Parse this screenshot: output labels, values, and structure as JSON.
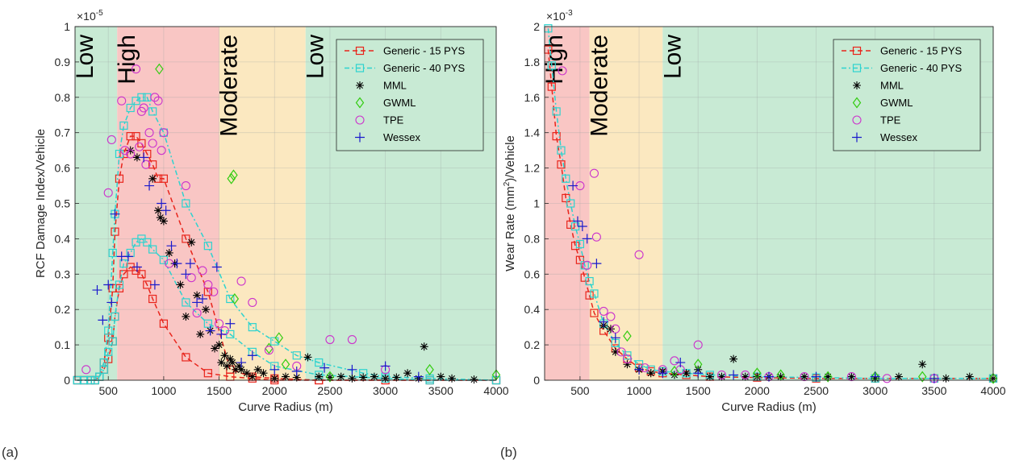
{
  "colors": {
    "low": "#c8ead4",
    "high": "#f9c6c4",
    "moderate": "#fbe8c0",
    "generic15": "#e8251c",
    "generic40": "#2dd3cf",
    "mml": "#000000",
    "gwml": "#33cc11",
    "tpe": "#cc33cc",
    "wessex": "#1a1acc"
  },
  "panel_labels": [
    "(a)",
    "(b)"
  ],
  "legend_entries": [
    "Generic - 15 PYS",
    "Generic - 40 PYS",
    "MML",
    "GWML",
    "TPE",
    "Wessex"
  ],
  "chart_data": [
    {
      "type": "scatter",
      "panel": "(a)",
      "xlabel": "Curve Radius (m)",
      "ylabel": "RCF Damage Index/Vehicle",
      "exponent_label": "×10",
      "exponent_power": "-5",
      "xlim": [
        200,
        4000
      ],
      "ylim": [
        0,
        1
      ],
      "xticks": [
        500,
        1000,
        1500,
        2000,
        2500,
        3000,
        3500,
        4000
      ],
      "yticks": [
        0,
        0.1,
        0.2,
        0.3,
        0.4,
        0.5,
        0.6,
        0.7,
        0.8,
        0.9,
        1
      ],
      "grid": true,
      "legend_position": "top-right",
      "zones": [
        {
          "label": "Low",
          "from": 200,
          "to": 580,
          "color_key": "low"
        },
        {
          "label": "High",
          "from": 580,
          "to": 1500,
          "color_key": "high"
        },
        {
          "label": "Moderate",
          "from": 1500,
          "to": 2280,
          "color_key": "moderate"
        },
        {
          "label": "Low",
          "from": 2280,
          "to": 4000,
          "color_key": "low"
        }
      ],
      "series": [
        {
          "name": "Generic - 15 PYS",
          "marker": "square",
          "color_key": "generic15",
          "line": true,
          "x": [
            220,
            280,
            340,
            380,
            420,
            460,
            500,
            540,
            560,
            600,
            640,
            700,
            750,
            800,
            850,
            900,
            1000,
            1200,
            1400,
            1600,
            1800,
            2000,
            2400,
            3000,
            3400,
            4000
          ],
          "y": [
            0.0,
            0.0,
            0.0,
            0.0,
            0.01,
            0.03,
            0.06,
            0.11,
            0.18,
            0.26,
            0.3,
            0.32,
            0.31,
            0.3,
            0.27,
            0.23,
            0.16,
            0.065,
            0.02,
            0.01,
            0.005,
            0.0,
            0.0,
            0.0,
            0.0,
            0.0
          ]
        },
        {
          "name": "Generic - 15 PYS",
          "marker": "square",
          "color_key": "generic15",
          "line": true,
          "x": [
            220,
            280,
            340,
            380,
            420,
            460,
            500,
            540,
            560,
            600,
            640,
            700,
            750,
            800,
            850,
            900,
            950,
            1000,
            1200,
            1400,
            1600,
            1800,
            2000,
            2400,
            3000,
            3400,
            4000
          ],
          "y": [
            0.0,
            0.0,
            0.0,
            0.0,
            0.01,
            0.05,
            0.12,
            0.26,
            0.42,
            0.57,
            0.64,
            0.69,
            0.69,
            0.67,
            0.64,
            0.61,
            0.57,
            0.57,
            0.4,
            0.25,
            0.03,
            0.01,
            0.005,
            0.0,
            0.0,
            0.0,
            0.0
          ]
        },
        {
          "name": "Generic - 40 PYS",
          "marker": "square",
          "color_key": "generic40",
          "line": true,
          "x": [
            220,
            280,
            340,
            380,
            420,
            460,
            500,
            540,
            560,
            600,
            640,
            700,
            750,
            800,
            850,
            900,
            1000,
            1200,
            1400,
            1600,
            1800,
            2000,
            2400,
            3000,
            3400,
            4000
          ],
          "y": [
            0.0,
            0.0,
            0.0,
            0.0,
            0.01,
            0.03,
            0.08,
            0.11,
            0.18,
            0.27,
            0.33,
            0.36,
            0.39,
            0.4,
            0.39,
            0.37,
            0.34,
            0.22,
            0.16,
            0.13,
            0.08,
            0.04,
            0.015,
            0.005,
            0.0,
            0.0
          ]
        },
        {
          "name": "Generic - 40 PYS",
          "marker": "square",
          "color_key": "generic40",
          "line": true,
          "x": [
            220,
            280,
            340,
            380,
            420,
            460,
            500,
            540,
            560,
            600,
            640,
            700,
            750,
            800,
            850,
            900,
            1000,
            1200,
            1400,
            1600,
            1800,
            2000,
            2200,
            2400,
            2800,
            3000,
            3400,
            4000
          ],
          "y": [
            0.0,
            0.0,
            0.0,
            0.0,
            0.01,
            0.05,
            0.14,
            0.36,
            0.47,
            0.64,
            0.72,
            0.77,
            0.79,
            0.8,
            0.8,
            0.76,
            0.7,
            0.5,
            0.38,
            0.23,
            0.15,
            0.11,
            0.07,
            0.05,
            0.02,
            0.01,
            0.005,
            0.0
          ]
        },
        {
          "name": "MML",
          "marker": "asterisk",
          "color_key": "mml",
          "line": false,
          "x": [
            700,
            760,
            900,
            950,
            970,
            1000,
            1050,
            1100,
            1150,
            1200,
            1250,
            1300,
            1330,
            1380,
            1420,
            1460,
            1500,
            1520,
            1550,
            1570,
            1600,
            1620,
            1650,
            1680,
            1700,
            1750,
            1800,
            1850,
            1900,
            2000,
            2100,
            2200,
            2300,
            2400,
            2500,
            2600,
            2700,
            2800,
            2900,
            3000,
            3100,
            3200,
            3300,
            3350,
            3500,
            3600,
            3800
          ],
          "y": [
            0.65,
            0.63,
            0.57,
            0.48,
            0.46,
            0.45,
            0.36,
            0.33,
            0.27,
            0.18,
            0.39,
            0.24,
            0.13,
            0.2,
            0.14,
            0.09,
            0.1,
            0.05,
            0.07,
            0.04,
            0.06,
            0.05,
            0.03,
            0.04,
            0.03,
            0.02,
            0.01,
            0.03,
            0.02,
            0.005,
            0.01,
            0.008,
            0.065,
            0.01,
            0.008,
            0.01,
            0.005,
            0.008,
            0.01,
            0.005,
            0.008,
            0.02,
            0.005,
            0.095,
            0.01,
            0.005,
            0.002
          ]
        },
        {
          "name": "GWML",
          "marker": "diamond",
          "color_key": "gwml",
          "line": false,
          "x": [
            960,
            1610,
            1630,
            1640,
            1950,
            2040,
            2100,
            2500,
            3400,
            4000
          ],
          "y": [
            0.88,
            0.57,
            0.58,
            0.23,
            0.09,
            0.12,
            0.045,
            0.01,
            0.03,
            0.015
          ]
        },
        {
          "name": "TPE",
          "marker": "circle",
          "color_key": "tpe",
          "line": false,
          "x": [
            300,
            500,
            530,
            620,
            650,
            700,
            750,
            780,
            800,
            820,
            840,
            870,
            900,
            920,
            950,
            980,
            1000,
            1050,
            1200,
            1250,
            1300,
            1350,
            1400,
            1450,
            1500,
            1550,
            1700,
            1800,
            1950,
            2200,
            2500,
            2700,
            3000
          ],
          "y": [
            0.03,
            0.53,
            0.68,
            0.79,
            0.65,
            0.64,
            0.88,
            0.66,
            0.76,
            0.77,
            0.61,
            0.7,
            0.67,
            0.8,
            0.79,
            0.65,
            0.7,
            0.33,
            0.55,
            0.29,
            0.19,
            0.31,
            0.27,
            0.25,
            0.16,
            0.14,
            0.28,
            0.22,
            0.085,
            0.04,
            0.115,
            0.115,
            0.03
          ]
        },
        {
          "name": "Wessex",
          "marker": "plus",
          "color_key": "wessex",
          "line": false,
          "x": [
            400,
            450,
            500,
            530,
            560,
            620,
            680,
            760,
            820,
            870,
            920,
            980,
            1020,
            1070,
            1120,
            1200,
            1240,
            1300,
            1350,
            1420,
            1480,
            1520,
            1600,
            1700,
            1800,
            2000,
            2200,
            2450,
            2700,
            3000,
            3300
          ],
          "y": [
            0.255,
            0.17,
            0.27,
            0.22,
            0.47,
            0.35,
            0.35,
            0.32,
            0.63,
            0.55,
            0.27,
            0.5,
            0.48,
            0.38,
            0.33,
            0.3,
            0.33,
            0.22,
            0.23,
            0.14,
            0.32,
            0.13,
            0.16,
            0.05,
            0.07,
            0.03,
            0.025,
            0.035,
            0.03,
            0.04,
            0.01
          ]
        }
      ]
    },
    {
      "type": "scatter",
      "panel": "(b)",
      "xlabel": "Curve Radius (m)",
      "ylabel_pre": "Wear Rate (mm",
      "ylabel_sup": "2",
      "ylabel_post": ")/Vehicle",
      "exponent_label": "×10",
      "exponent_power": "-3",
      "xlim": [
        200,
        4000
      ],
      "ylim": [
        0,
        0.002
      ],
      "xticks": [
        500,
        1000,
        1500,
        2000,
        2500,
        3000,
        3500,
        4000
      ],
      "yticks": [
        0,
        0.0002,
        0.0004,
        0.0006,
        0.0008,
        0.001,
        0.0012,
        0.0014,
        0.0016,
        0.0018,
        0.002
      ],
      "ytick_labels": [
        "0",
        "0.2",
        "0.4",
        "0.6",
        "0.8",
        "1",
        "1.2",
        "1.4",
        "1.6",
        "1.8",
        "2"
      ],
      "grid": true,
      "legend_position": "top-right",
      "zones": [
        {
          "label": "High",
          "from": 200,
          "to": 580,
          "color_key": "high"
        },
        {
          "label": "Moderate",
          "from": 580,
          "to": 1200,
          "color_key": "moderate"
        },
        {
          "label": "Low",
          "from": 1200,
          "to": 4000,
          "color_key": "low"
        }
      ],
      "series": [
        {
          "name": "Generic - 15 PYS",
          "marker": "square",
          "color_key": "generic15",
          "line": true,
          "x": [
            230,
            260,
            300,
            340,
            380,
            420,
            460,
            500,
            540,
            580,
            620,
            700,
            800,
            900,
            1000,
            1100,
            1200,
            1400,
            1600,
            2000,
            2500,
            3000,
            3500,
            4000
          ],
          "y": [
            0.00187,
            0.00166,
            0.00138,
            0.00122,
            0.00103,
            0.00088,
            0.00076,
            0.00068,
            0.00058,
            0.00048,
            0.00038,
            0.00028,
            0.00018,
            0.00012,
            7e-05,
            5e-05,
            4e-05,
            3e-05,
            2e-05,
            1.5e-05,
            1e-05,
            1e-05,
            1e-05,
            1e-05
          ]
        },
        {
          "name": "Generic - 40 PYS",
          "marker": "square",
          "color_key": "generic40",
          "line": true,
          "x": [
            230,
            260,
            300,
            340,
            380,
            420,
            460,
            500,
            540,
            580,
            620,
            700,
            800,
            900,
            1000,
            1100,
            1200,
            1400,
            1600,
            2000,
            2500,
            3000,
            3500,
            4000
          ],
          "y": [
            0.00199,
            0.00178,
            0.00152,
            0.0013,
            0.00114,
            0.001,
            0.00087,
            0.00077,
            0.00065,
            0.00056,
            0.00049,
            0.00032,
            0.00021,
            0.00014,
            9e-05,
            6e-05,
            5e-05,
            4e-05,
            3e-05,
            2e-05,
            1.5e-05,
            1e-05,
            1e-05,
            1e-05
          ]
        },
        {
          "name": "MML",
          "marker": "asterisk",
          "color_key": "mml",
          "line": false,
          "x": [
            700,
            760,
            800,
            900,
            1000,
            1100,
            1200,
            1300,
            1400,
            1500,
            1600,
            1700,
            1800,
            1900,
            2000,
            2100,
            2200,
            2400,
            2600,
            2800,
            3000,
            3200,
            3400,
            3600,
            3800,
            4000
          ],
          "y": [
            0.00031,
            0.00029,
            0.00016,
            9e-05,
            6e-05,
            4e-05,
            5e-05,
            3e-05,
            4e-05,
            6e-05,
            2e-05,
            2e-05,
            0.00012,
            2e-05,
            2e-05,
            2e-05,
            2e-05,
            2e-05,
            2e-05,
            2e-05,
            1e-05,
            2e-05,
            9e-05,
            1e-05,
            2e-05,
            1e-05
          ]
        },
        {
          "name": "GWML",
          "marker": "diamond",
          "color_key": "gwml",
          "line": false,
          "x": [
            900,
            1300,
            1500,
            2000,
            2200,
            2600,
            3000,
            3400,
            4000
          ],
          "y": [
            0.00025,
            5e-05,
            9e-05,
            4e-05,
            3e-05,
            2e-05,
            2e-05,
            2e-05,
            1e-05
          ]
        },
        {
          "name": "TPE",
          "marker": "circle",
          "color_key": "tpe",
          "line": false,
          "x": [
            350,
            500,
            560,
            620,
            640,
            700,
            760,
            800,
            850,
            900,
            1000,
            1050,
            1200,
            1300,
            1350,
            1500,
            1700,
            1900,
            2100,
            2400,
            2800,
            3100,
            3500
          ],
          "y": [
            0.00175,
            0.0011,
            0.00065,
            0.00117,
            0.00081,
            0.00039,
            0.00036,
            0.00029,
            0.00016,
            0.00012,
            0.00071,
            7e-05,
            6e-05,
            0.00011,
            6e-05,
            0.0002,
            3e-05,
            3e-05,
            2e-05,
            2e-05,
            2e-05,
            1e-05,
            1e-05
          ]
        },
        {
          "name": "Wessex",
          "marker": "plus",
          "color_key": "wessex",
          "line": false,
          "x": [
            440,
            480,
            520,
            560,
            640,
            700,
            800,
            1000,
            1200,
            1350,
            1500,
            1800,
            2100,
            2500,
            3000,
            3500
          ],
          "y": [
            0.0011,
            0.0009,
            0.00087,
            0.0008,
            0.00066,
            0.00033,
            0.00024,
            6e-05,
            4e-05,
            0.0001,
            4e-05,
            3e-05,
            2e-05,
            2e-05,
            2e-05,
            1e-05
          ]
        }
      ]
    }
  ]
}
